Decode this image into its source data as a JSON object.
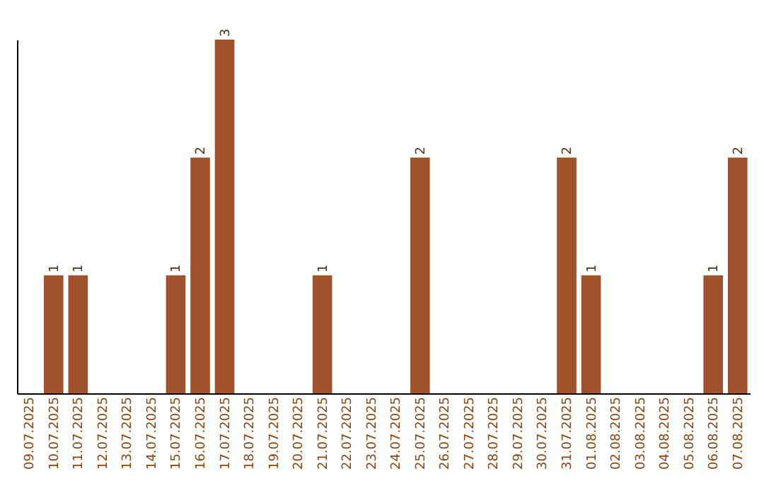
{
  "chart_data": {
    "type": "bar",
    "categories": [
      "09.07.2025",
      "10.07.2025",
      "11.07.2025",
      "12.07.2025",
      "13.07.2025",
      "14.07.2025",
      "15.07.2025",
      "16.07.2025",
      "17.07.2025",
      "18.07.2025",
      "19.07.2025",
      "20.07.2025",
      "21.07.2025",
      "22.07.2025",
      "23.07.2025",
      "24.07.2025",
      "25.07.2025",
      "26.07.2025",
      "27.07.2025",
      "28.07.2025",
      "29.07.2025",
      "30.07.2025",
      "31.07.2025",
      "01.08.2025",
      "02.08.2025",
      "03.08.2025",
      "04.08.2025",
      "05.08.2025",
      "06.08.2025",
      "07.08.2025"
    ],
    "values": [
      0,
      1,
      1,
      0,
      0,
      0,
      1,
      2,
      3,
      0,
      0,
      0,
      1,
      0,
      0,
      0,
      2,
      0,
      0,
      0,
      0,
      0,
      2,
      1,
      0,
      0,
      0,
      0,
      1,
      2
    ],
    "value_labels": [
      null,
      "1",
      "1",
      null,
      null,
      null,
      "1",
      "2",
      "3",
      null,
      null,
      null,
      "1",
      null,
      null,
      null,
      "2",
      null,
      null,
      null,
      null,
      null,
      "2",
      "1",
      null,
      null,
      null,
      null,
      "1",
      "2"
    ],
    "color": "#a0522d",
    "grid": false,
    "tick_labels": "x"
  }
}
